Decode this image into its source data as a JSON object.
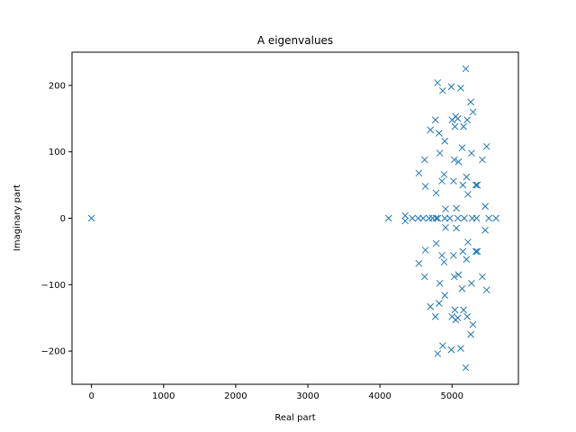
{
  "chart_data": {
    "type": "scatter",
    "title": "A eigenvalues",
    "xlabel": "Real part",
    "ylabel": "Imaginary part",
    "xlim": [
      -270,
      5920
    ],
    "ylim": [
      -250,
      250
    ],
    "xticks": [
      0,
      1000,
      2000,
      3000,
      4000,
      5000
    ],
    "xtick_labels": [
      "0",
      "1000",
      "2000",
      "3000",
      "4000",
      "5000"
    ],
    "yticks": [
      -200,
      -100,
      0,
      100,
      200
    ],
    "ytick_labels": [
      "−200",
      "−100",
      "0",
      "100",
      "200"
    ],
    "grid": false,
    "marker": "x",
    "color": "#1f77b4",
    "x": [
      0,
      4120,
      4350,
      4350,
      4450,
      4530,
      4600,
      4680,
      4730,
      4780,
      4800,
      4900,
      4970,
      5080,
      5170,
      5280,
      5340,
      5510,
      5610,
      4540,
      4540,
      4620,
      4620,
      4630,
      4630,
      4700,
      4700,
      4770,
      4770,
      4780,
      4780,
      4800,
      4800,
      4820,
      4820,
      4830,
      4830,
      4860,
      4860,
      4870,
      4870,
      4890,
      4890,
      4900,
      4900,
      4910,
      4910,
      4990,
      4990,
      5000,
      5000,
      5020,
      5020,
      5030,
      5030,
      5040,
      5040,
      5050,
      5050,
      5060,
      5060,
      5080,
      5080,
      5090,
      5090,
      5120,
      5120,
      5140,
      5140,
      5150,
      5150,
      5160,
      5160,
      5190,
      5190,
      5200,
      5200,
      5210,
      5210,
      5220,
      5220,
      5260,
      5260,
      5270,
      5270,
      5290,
      5290,
      5330,
      5330,
      5350,
      5350,
      5420,
      5420,
      5460,
      5460,
      5480,
      5480
    ],
    "y": [
      0,
      0,
      4,
      -4,
      0,
      0,
      0,
      0,
      0,
      0,
      0,
      0,
      0,
      0,
      0,
      0,
      0,
      0,
      0,
      68,
      -68,
      88,
      -88,
      48,
      -48,
      133,
      -133,
      148,
      -148,
      38,
      -38,
      204,
      -204,
      128,
      -128,
      98,
      -98,
      56,
      -56,
      192,
      -192,
      66,
      -66,
      116,
      -116,
      14,
      -14,
      198,
      -198,
      148,
      -148,
      56,
      -56,
      88,
      -88,
      138,
      -138,
      153,
      -153,
      15,
      -15,
      150,
      -150,
      85,
      -85,
      196,
      -196,
      106,
      -106,
      50,
      -50,
      138,
      -138,
      225,
      -225,
      62,
      -62,
      148,
      -148,
      36,
      -36,
      175,
      -175,
      98,
      -98,
      160,
      -160,
      50,
      -50,
      50,
      -50,
      88,
      -88,
      18,
      -18,
      108,
      -108
    ]
  }
}
